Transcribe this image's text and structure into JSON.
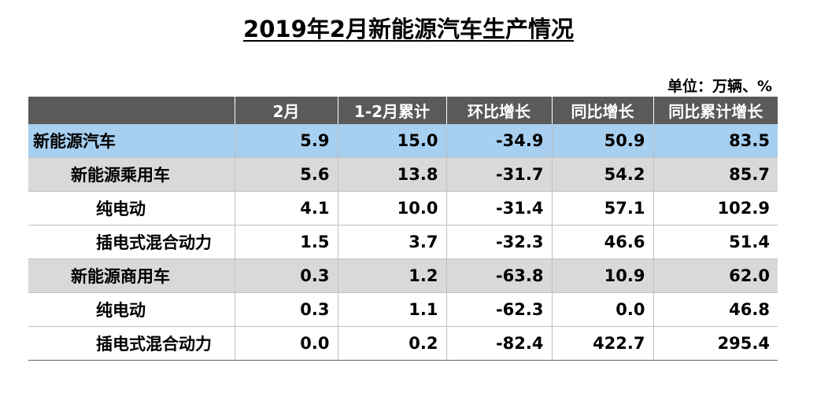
{
  "title": "2019年2月新能源汽车生产情况",
  "unit": "单位：万辆、%",
  "colors": {
    "header_bg": "#5a5a5a",
    "total_row_bg": "#a7cff0",
    "sub_row_bg": "#d9d9d9"
  },
  "columns": [
    "",
    "2月",
    "1-2月累计",
    "环比增长",
    "同比增长",
    "同比累计增长"
  ],
  "rows": [
    {
      "name": "新能源汽车",
      "level": 0,
      "style": "total",
      "values": [
        "5.9",
        "15.0",
        "-34.9",
        "50.9",
        "83.5"
      ]
    },
    {
      "name": "新能源乘用车",
      "level": 1,
      "style": "sub",
      "values": [
        "5.6",
        "13.8",
        "-31.7",
        "54.2",
        "85.7"
      ]
    },
    {
      "name": "纯电动",
      "level": 2,
      "style": "plain",
      "values": [
        "4.1",
        "10.0",
        "-31.4",
        "57.1",
        "102.9"
      ]
    },
    {
      "name": "插电式混合动力",
      "level": 2,
      "style": "plain",
      "values": [
        "1.5",
        "3.7",
        "-32.3",
        "46.6",
        "51.4"
      ]
    },
    {
      "name": "新能源商用车",
      "level": 1,
      "style": "sub",
      "values": [
        "0.3",
        "1.2",
        "-63.8",
        "10.9",
        "62.0"
      ]
    },
    {
      "name": "纯电动",
      "level": 2,
      "style": "plain",
      "values": [
        "0.3",
        "1.1",
        "-62.3",
        "0.0",
        "46.8"
      ]
    },
    {
      "name": "插电式混合动力",
      "level": 2,
      "style": "plain",
      "values": [
        "0.0",
        "0.2",
        "-82.4",
        "422.7",
        "295.4"
      ]
    }
  ]
}
